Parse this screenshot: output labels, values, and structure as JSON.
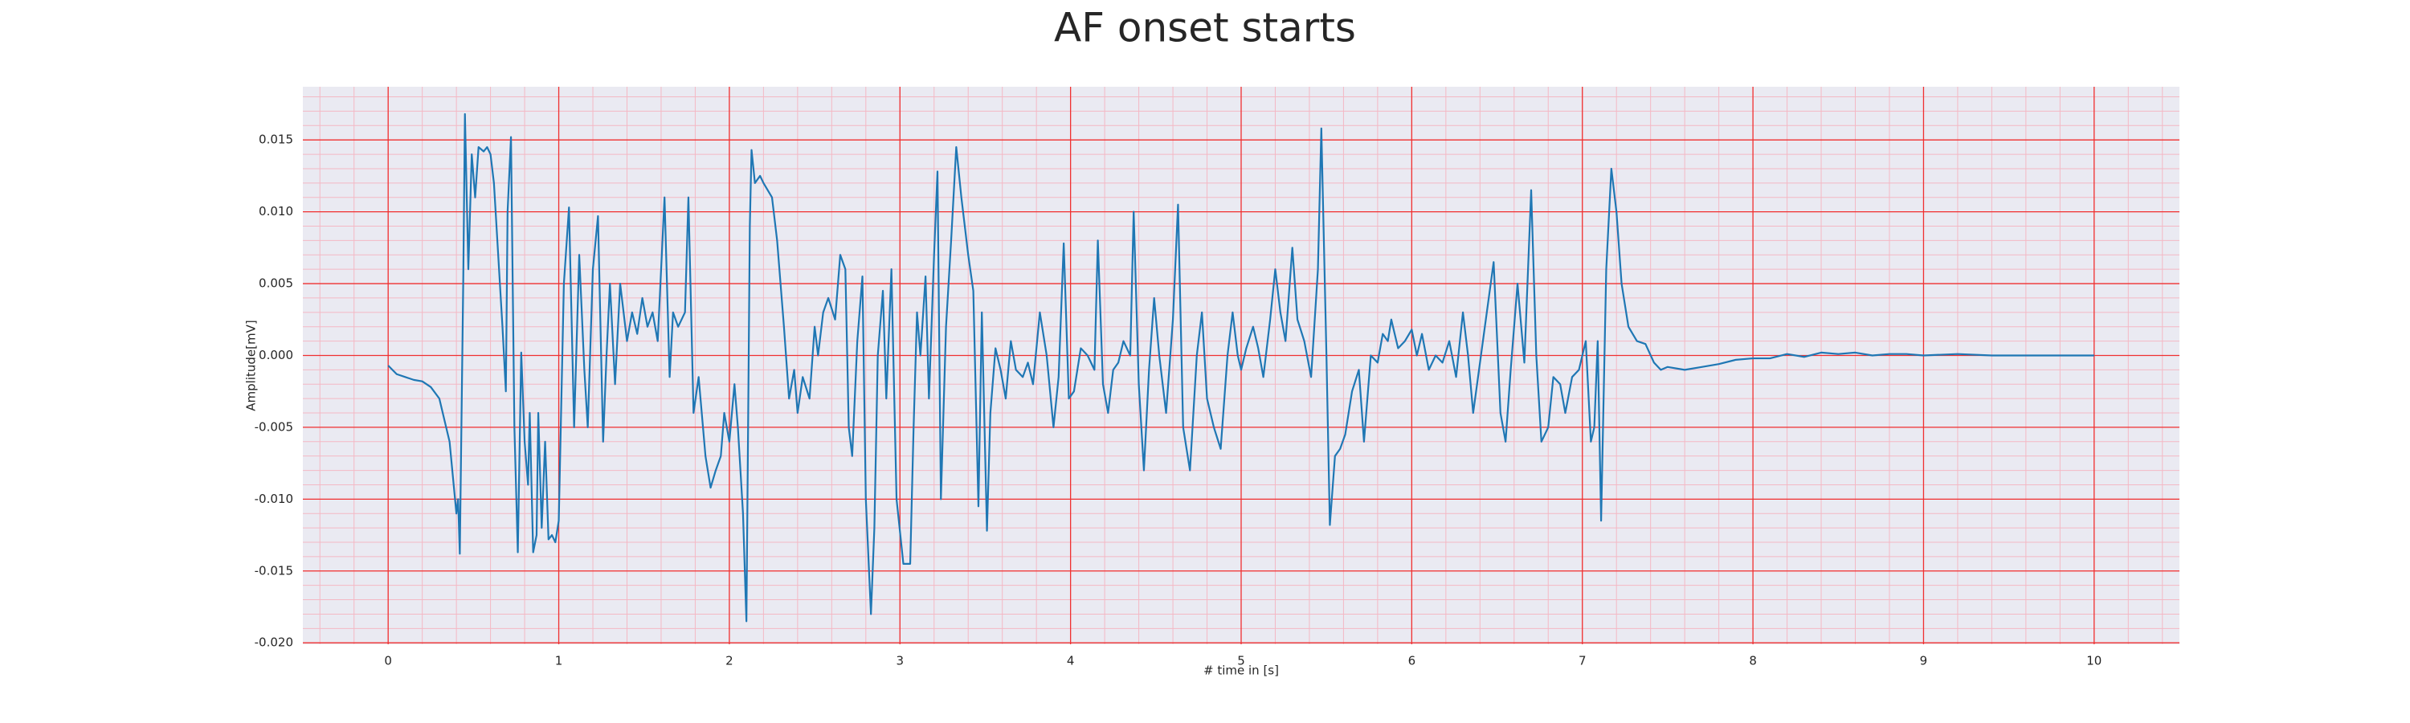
{
  "chart_data": {
    "type": "line",
    "title": "AF onset starts",
    "xlabel": "# time in [s]",
    "ylabel": "Amplitude[mV]",
    "color": "#1f77b4",
    "xlim": [
      -0.5,
      10.5
    ],
    "xticks": [
      0,
      1,
      2,
      3,
      4,
      5,
      6,
      7,
      8,
      9,
      10
    ],
    "ylim": [
      -0.0201,
      0.0187
    ],
    "yticks": [
      {
        "value": -0.02,
        "label": "-0.020"
      },
      -0.015,
      {
        "value": -0.01,
        "label": "-0.010"
      },
      -0.005,
      {
        "value": 0,
        "label": "0.000"
      },
      0.005,
      {
        "value": 0.01,
        "label": "0.010"
      },
      0.015
    ],
    "grid": true,
    "grid_color": "#f03030",
    "minor_grid": true,
    "minor_grid_color": "#f4b8c4",
    "minor_divisions": 5,
    "x": [
      0,
      0.05,
      0.1,
      0.15,
      0.2,
      0.25,
      0.3,
      0.33,
      0.36,
      0.38,
      0.4,
      0.41,
      0.42,
      0.44,
      0.45,
      0.47,
      0.49,
      0.51,
      0.53,
      0.56,
      0.58,
      0.6,
      0.62,
      0.65,
      0.67,
      0.69,
      0.7,
      0.72,
      0.74,
      0.76,
      0.78,
      0.8,
      0.82,
      0.83,
      0.85,
      0.87,
      0.88,
      0.9,
      0.92,
      0.94,
      0.96,
      0.98,
      1.0,
      1.03,
      1.06,
      1.09,
      1.12,
      1.15,
      1.17,
      1.2,
      1.23,
      1.26,
      1.28,
      1.3,
      1.33,
      1.36,
      1.4,
      1.43,
      1.46,
      1.49,
      1.52,
      1.55,
      1.58,
      1.62,
      1.65,
      1.67,
      1.7,
      1.74,
      1.76,
      1.79,
      1.82,
      1.86,
      1.89,
      1.92,
      1.95,
      1.97,
      2.0,
      2.03,
      2.05,
      2.08,
      2.1,
      2.12,
      2.13,
      2.15,
      2.18,
      2.2,
      2.25,
      2.28,
      2.32,
      2.35,
      2.38,
      2.4,
      2.43,
      2.47,
      2.5,
      2.52,
      2.55,
      2.58,
      2.62,
      2.65,
      2.68,
      2.7,
      2.72,
      2.75,
      2.78,
      2.8,
      2.83,
      2.85,
      2.87,
      2.9,
      2.92,
      2.95,
      2.98,
      3.02,
      3.06,
      3.08,
      3.1,
      3.12,
      3.15,
      3.17,
      3.2,
      3.22,
      3.24,
      3.27,
      3.3,
      3.33,
      3.36,
      3.4,
      3.43,
      3.46,
      3.48,
      3.51,
      3.53,
      3.56,
      3.59,
      3.62,
      3.65,
      3.68,
      3.72,
      3.75,
      3.78,
      3.82,
      3.86,
      3.9,
      3.93,
      3.96,
      3.99,
      4.02,
      4.06,
      4.1,
      4.14,
      4.16,
      4.19,
      4.22,
      4.25,
      4.28,
      4.31,
      4.35,
      4.37,
      4.4,
      4.43,
      4.46,
      4.49,
      4.52,
      4.56,
      4.6,
      4.63,
      4.66,
      4.7,
      4.74,
      4.77,
      4.8,
      4.84,
      4.88,
      4.92,
      4.95,
      4.98,
      5.0,
      5.03,
      5.07,
      5.1,
      5.13,
      5.17,
      5.2,
      5.23,
      5.26,
      5.3,
      5.33,
      5.37,
      5.41,
      5.45,
      5.47,
      5.5,
      5.52,
      5.55,
      5.58,
      5.61,
      5.65,
      5.69,
      5.72,
      5.76,
      5.8,
      5.83,
      5.86,
      5.88,
      5.92,
      5.96,
      6.0,
      6.03,
      6.06,
      6.1,
      6.14,
      6.18,
      6.22,
      6.26,
      6.3,
      6.33,
      6.36,
      6.4,
      6.44,
      6.48,
      6.52,
      6.55,
      6.58,
      6.62,
      6.66,
      6.7,
      6.73,
      6.76,
      6.8,
      6.83,
      6.87,
      6.9,
      6.94,
      6.98,
      7.02,
      7.05,
      7.07,
      7.09,
      7.11,
      7.14,
      7.17,
      7.2,
      7.23,
      7.27,
      7.32,
      7.37,
      7.42,
      7.46,
      7.5,
      7.6,
      7.7,
      7.8,
      7.9,
      8.0,
      8.1,
      8.2,
      8.3,
      8.4,
      8.5,
      8.6,
      8.7,
      8.8,
      8.9,
      9.0,
      9.2,
      9.4,
      9.6,
      9.8,
      10.0
    ],
    "values": [
      -0.0007,
      -0.0013,
      -0.0015,
      -0.0017,
      -0.0018,
      -0.0022,
      -0.003,
      -0.0045,
      -0.006,
      -0.0085,
      -0.011,
      -0.01,
      -0.0138,
      0.005,
      0.0168,
      0.006,
      0.014,
      0.011,
      0.0145,
      0.0142,
      0.0145,
      0.014,
      0.012,
      0.006,
      0.002,
      -0.0025,
      0.01,
      0.0152,
      -0.005,
      -0.0137,
      0.0002,
      -0.006,
      -0.009,
      -0.004,
      -0.0137,
      -0.0125,
      -0.004,
      -0.012,
      -0.006,
      -0.0128,
      -0.0125,
      -0.013,
      -0.0115,
      0.005,
      0.0103,
      -0.005,
      0.007,
      -0.001,
      -0.005,
      0.006,
      0.0097,
      -0.006,
      0,
      0.005,
      -0.002,
      0.005,
      0.001,
      0.003,
      0.0015,
      0.004,
      0.002,
      0.003,
      0.001,
      0.011,
      -0.0015,
      0.003,
      0.002,
      0.003,
      0.011,
      -0.004,
      -0.0015,
      -0.007,
      -0.0092,
      -0.008,
      -0.007,
      -0.004,
      -0.006,
      -0.002,
      -0.005,
      -0.011,
      -0.0185,
      0.009,
      0.0143,
      0.012,
      0.0125,
      0.012,
      0.011,
      0.008,
      0.002,
      -0.003,
      -0.001,
      -0.004,
      -0.0015,
      -0.003,
      0.002,
      0,
      0.003,
      0.004,
      0.0025,
      0.007,
      0.006,
      -0.005,
      -0.007,
      0.001,
      0.0055,
      -0.01,
      -0.018,
      -0.012,
      0,
      0.0045,
      -0.003,
      0.006,
      -0.01,
      -0.0145,
      -0.0145,
      -0.005,
      0.003,
      0,
      0.0055,
      -0.003,
      0.007,
      0.0128,
      -0.01,
      0.002,
      0.008,
      0.0145,
      0.011,
      0.007,
      0.0045,
      -0.0105,
      0.003,
      -0.0122,
      -0.004,
      0.0005,
      -0.001,
      -0.003,
      0.001,
      -0.001,
      -0.0015,
      -0.0005,
      -0.002,
      0.003,
      0,
      -0.005,
      -0.0015,
      0.0078,
      -0.003,
      -0.0025,
      0.0005,
      0,
      -0.001,
      0.008,
      -0.002,
      -0.004,
      -0.001,
      -0.0005,
      0.001,
      0,
      0.01,
      -0.002,
      -0.008,
      -0.001,
      0.004,
      0,
      -0.004,
      0.0025,
      0.0105,
      -0.005,
      -0.008,
      0,
      0.003,
      -0.003,
      -0.005,
      -0.0065,
      0,
      0.003,
      0,
      -0.001,
      0.0005,
      0.002,
      0.0005,
      -0.0015,
      0.0025,
      0.006,
      0.003,
      0.001,
      0.0075,
      0.0025,
      0.001,
      -0.0015,
      0.006,
      0.0158,
      0,
      -0.0118,
      -0.007,
      -0.0065,
      -0.0055,
      -0.0025,
      -0.001,
      -0.006,
      0,
      -0.0005,
      0.0015,
      0.001,
      0.0025,
      0.0005,
      0.001,
      0.0018,
      0,
      0.0015,
      -0.001,
      0,
      -0.0005,
      0.001,
      -0.0015,
      0.003,
      0,
      -0.004,
      -0.0005,
      0.003,
      0.0065,
      -0.004,
      -0.006,
      -0.001,
      0.005,
      -0.0005,
      0.0115,
      0,
      -0.006,
      -0.005,
      -0.0015,
      -0.002,
      -0.004,
      -0.0015,
      -0.001,
      0.001,
      -0.006,
      -0.005,
      0.001,
      -0.0115,
      0.006,
      0.013,
      0.01,
      0.005,
      0.002,
      0.001,
      0.0008,
      -0.0005,
      -0.001,
      -0.0008,
      -0.001,
      -0.0008,
      -0.0006,
      -0.0003,
      -0.0002,
      -0.0002,
      0.0001,
      -0.0001,
      0.0002,
      0.0001,
      0.0002,
      0,
      0.0001,
      0.0001,
      0,
      0.0001,
      0,
      0,
      0,
      0
    ]
  }
}
